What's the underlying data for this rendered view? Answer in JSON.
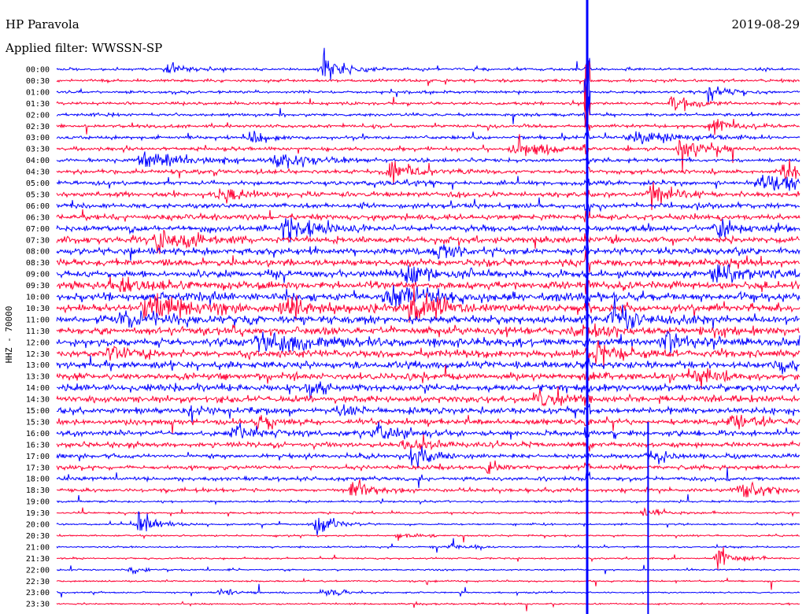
{
  "header": {
    "station": "HP Paravola",
    "date": "2019-08-29",
    "filter": "Applied filter: WWSSN-SP"
  },
  "chart_data": {
    "type": "line",
    "subtype": "helicorder",
    "channel_label": "HHZ - 70000",
    "row_labels": [
      "00:00",
      "00:30",
      "01:00",
      "01:30",
      "02:00",
      "02:30",
      "03:00",
      "03:30",
      "04:00",
      "04:30",
      "05:00",
      "05:30",
      "06:00",
      "06:30",
      "07:00",
      "07:30",
      "08:00",
      "08:30",
      "09:00",
      "09:30",
      "10:00",
      "10:30",
      "11:00",
      "11:30",
      "12:00",
      "12:30",
      "13:00",
      "13:30",
      "14:00",
      "14:30",
      "15:00",
      "15:30",
      "16:00",
      "16:30",
      "17:00",
      "17:30",
      "18:00",
      "18:30",
      "19:00",
      "19:30",
      "20:00",
      "20:30",
      "21:00",
      "21:30",
      "22:00",
      "22:30",
      "23:00",
      "23:30"
    ],
    "trace_colors": [
      "#0000ff",
      "#ff0033"
    ],
    "color_pattern": "alternating",
    "events": [
      {
        "row": 0,
        "pos": 0.36,
        "amp": 22,
        "dur": 0.03
      },
      {
        "row": 0,
        "pos": 0.15,
        "amp": 7,
        "dur": 0.03
      },
      {
        "row": 2,
        "pos": 0.88,
        "amp": 10,
        "dur": 0.03
      },
      {
        "row": 3,
        "pos": 0.83,
        "amp": 9,
        "dur": 0.03
      },
      {
        "row": 5,
        "pos": 0.88,
        "amp": 8,
        "dur": 0.04
      },
      {
        "row": 6,
        "pos": 0.78,
        "amp": 9,
        "dur": 0.07
      },
      {
        "row": 6,
        "pos": 0.26,
        "amp": 12,
        "dur": 0.02
      },
      {
        "row": 7,
        "pos": 0.84,
        "amp": 18,
        "dur": 0.03
      },
      {
        "row": 7,
        "pos": 0.62,
        "amp": 9,
        "dur": 0.05
      },
      {
        "row": 8,
        "pos": 0.12,
        "amp": 11,
        "dur": 0.06
      },
      {
        "row": 8,
        "pos": 0.3,
        "amp": 10,
        "dur": 0.05
      },
      {
        "row": 9,
        "pos": 0.45,
        "amp": 9,
        "dur": 0.05
      },
      {
        "row": 9,
        "pos": 0.98,
        "amp": 10,
        "dur": 0.03
      },
      {
        "row": 10,
        "pos": 0.95,
        "amp": 12,
        "dur": 0.05
      },
      {
        "row": 11,
        "pos": 0.8,
        "amp": 20,
        "dur": 0.03
      },
      {
        "row": 11,
        "pos": 0.22,
        "amp": 10,
        "dur": 0.04
      },
      {
        "row": 14,
        "pos": 0.31,
        "amp": 14,
        "dur": 0.04
      },
      {
        "row": 14,
        "pos": 0.89,
        "amp": 12,
        "dur": 0.03
      },
      {
        "row": 15,
        "pos": 0.14,
        "amp": 10,
        "dur": 0.05
      },
      {
        "row": 16,
        "pos": 0.51,
        "amp": 13,
        "dur": 0.02
      },
      {
        "row": 18,
        "pos": 0.47,
        "amp": 16,
        "dur": 0.03
      },
      {
        "row": 18,
        "pos": 0.89,
        "amp": 11,
        "dur": 0.05
      },
      {
        "row": 19,
        "pos": 0.09,
        "amp": 11,
        "dur": 0.03
      },
      {
        "row": 20,
        "pos": 0.45,
        "amp": 11,
        "dur": 0.06
      },
      {
        "row": 21,
        "pos": 0.12,
        "amp": 16,
        "dur": 0.06
      },
      {
        "row": 21,
        "pos": 0.48,
        "amp": 22,
        "dur": 0.04
      },
      {
        "row": 21,
        "pos": 0.31,
        "amp": 12,
        "dur": 0.05
      },
      {
        "row": 22,
        "pos": 0.09,
        "amp": 11,
        "dur": 0.04
      },
      {
        "row": 22,
        "pos": 0.75,
        "amp": 12,
        "dur": 0.05
      },
      {
        "row": 23,
        "pos": 0.7,
        "amp": 9,
        "dur": 0.04
      },
      {
        "row": 24,
        "pos": 0.28,
        "amp": 11,
        "dur": 0.08
      },
      {
        "row": 24,
        "pos": 0.82,
        "amp": 10,
        "dur": 0.04
      },
      {
        "row": 25,
        "pos": 0.07,
        "amp": 10,
        "dur": 0.03
      },
      {
        "row": 25,
        "pos": 0.73,
        "amp": 12,
        "dur": 0.04
      },
      {
        "row": 26,
        "pos": 0.97,
        "amp": 11,
        "dur": 0.03
      },
      {
        "row": 27,
        "pos": 0.86,
        "amp": 10,
        "dur": 0.03
      },
      {
        "row": 28,
        "pos": 0.34,
        "amp": 9,
        "dur": 0.03
      },
      {
        "row": 29,
        "pos": 0.65,
        "amp": 9,
        "dur": 0.04
      },
      {
        "row": 30,
        "pos": 0.17,
        "amp": 9,
        "dur": 0.02
      },
      {
        "row": 30,
        "pos": 0.38,
        "amp": 9,
        "dur": 0.02
      },
      {
        "row": 31,
        "pos": 0.27,
        "amp": 8,
        "dur": 0.03
      },
      {
        "row": 31,
        "pos": 0.91,
        "amp": 9,
        "dur": 0.04
      },
      {
        "row": 32,
        "pos": 0.24,
        "amp": 10,
        "dur": 0.04
      },
      {
        "row": 32,
        "pos": 0.43,
        "amp": 12,
        "dur": 0.04
      },
      {
        "row": 33,
        "pos": 0.47,
        "amp": 9,
        "dur": 0.05
      },
      {
        "row": 34,
        "pos": 0.48,
        "amp": 12,
        "dur": 0.03
      },
      {
        "row": 34,
        "pos": 0.8,
        "amp": 8,
        "dur": 0.03
      },
      {
        "row": 35,
        "pos": 0.58,
        "amp": 9,
        "dur": 0.02
      },
      {
        "row": 37,
        "pos": 0.4,
        "amp": 10,
        "dur": 0.03
      },
      {
        "row": 37,
        "pos": 0.92,
        "amp": 10,
        "dur": 0.05
      },
      {
        "row": 39,
        "pos": 0.79,
        "amp": 7,
        "dur": 0.02
      },
      {
        "row": 40,
        "pos": 0.11,
        "amp": 11,
        "dur": 0.03
      },
      {
        "row": 40,
        "pos": 0.35,
        "amp": 11,
        "dur": 0.03
      },
      {
        "row": 41,
        "pos": 0.46,
        "amp": 6,
        "dur": 0.02
      },
      {
        "row": 42,
        "pos": 0.53,
        "amp": 5,
        "dur": 0.02
      },
      {
        "row": 43,
        "pos": 0.89,
        "amp": 14,
        "dur": 0.03
      },
      {
        "row": 44,
        "pos": 0.1,
        "amp": 5,
        "dur": 0.02
      },
      {
        "row": 46,
        "pos": 0.22,
        "amp": 6,
        "dur": 0.02
      },
      {
        "row": 46,
        "pos": 0.36,
        "amp": 7,
        "dur": 0.03
      }
    ],
    "teleseism": {
      "pos": 0.714,
      "rows": [
        0,
        36
      ],
      "amp": [
        9,
        60,
        34,
        24,
        18,
        12,
        10
      ]
    },
    "markers": [
      0.714,
      0.796
    ]
  }
}
